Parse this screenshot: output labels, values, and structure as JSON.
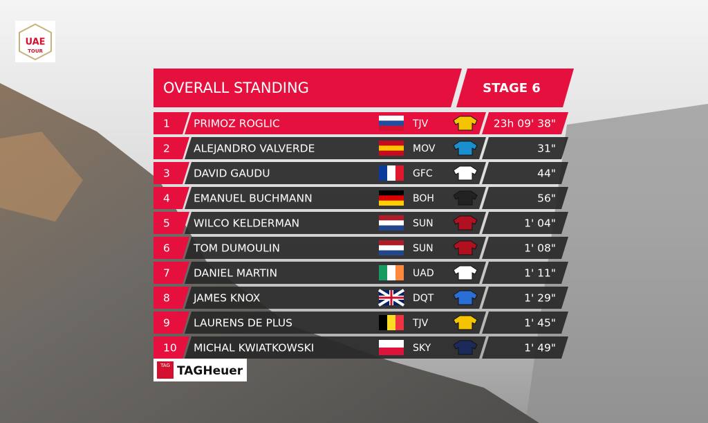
{
  "logo": {
    "line1": "UAE",
    "line2": "TOUR"
  },
  "header": {
    "title": "OVERALL STANDING",
    "stage": "STAGE 6"
  },
  "table": {
    "rows": [
      [
        "1",
        "PRIMOZ ROGLIC",
        "TJV",
        "23h 09' 38\""
      ],
      [
        "2",
        "ALEJANDRO VALVERDE",
        "MOV",
        "31\""
      ],
      [
        "3",
        "DAVID GAUDU",
        "GFC",
        "44\""
      ],
      [
        "4",
        "EMANUEL BUCHMANN",
        "BOH",
        "56\""
      ],
      [
        "5",
        "WILCO KELDERMAN",
        "SUN",
        "1' 04\""
      ],
      [
        "6",
        "TOM DUMOULIN",
        "SUN",
        "1' 08\""
      ],
      [
        "7",
        "DANIEL MARTIN",
        "UAD",
        "1' 11\""
      ],
      [
        "8",
        "JAMES KNOX",
        "DQT",
        "1' 29\""
      ],
      [
        "9",
        "LAURENS DE PLUS",
        "TJV",
        "1' 45\""
      ],
      [
        "10",
        "MICHAL KWIATKOWSKI",
        "SKY",
        "1' 49\""
      ]
    ]
  },
  "sponsor": {
    "badge": "TAG",
    "name": "TAGHeuer"
  }
}
